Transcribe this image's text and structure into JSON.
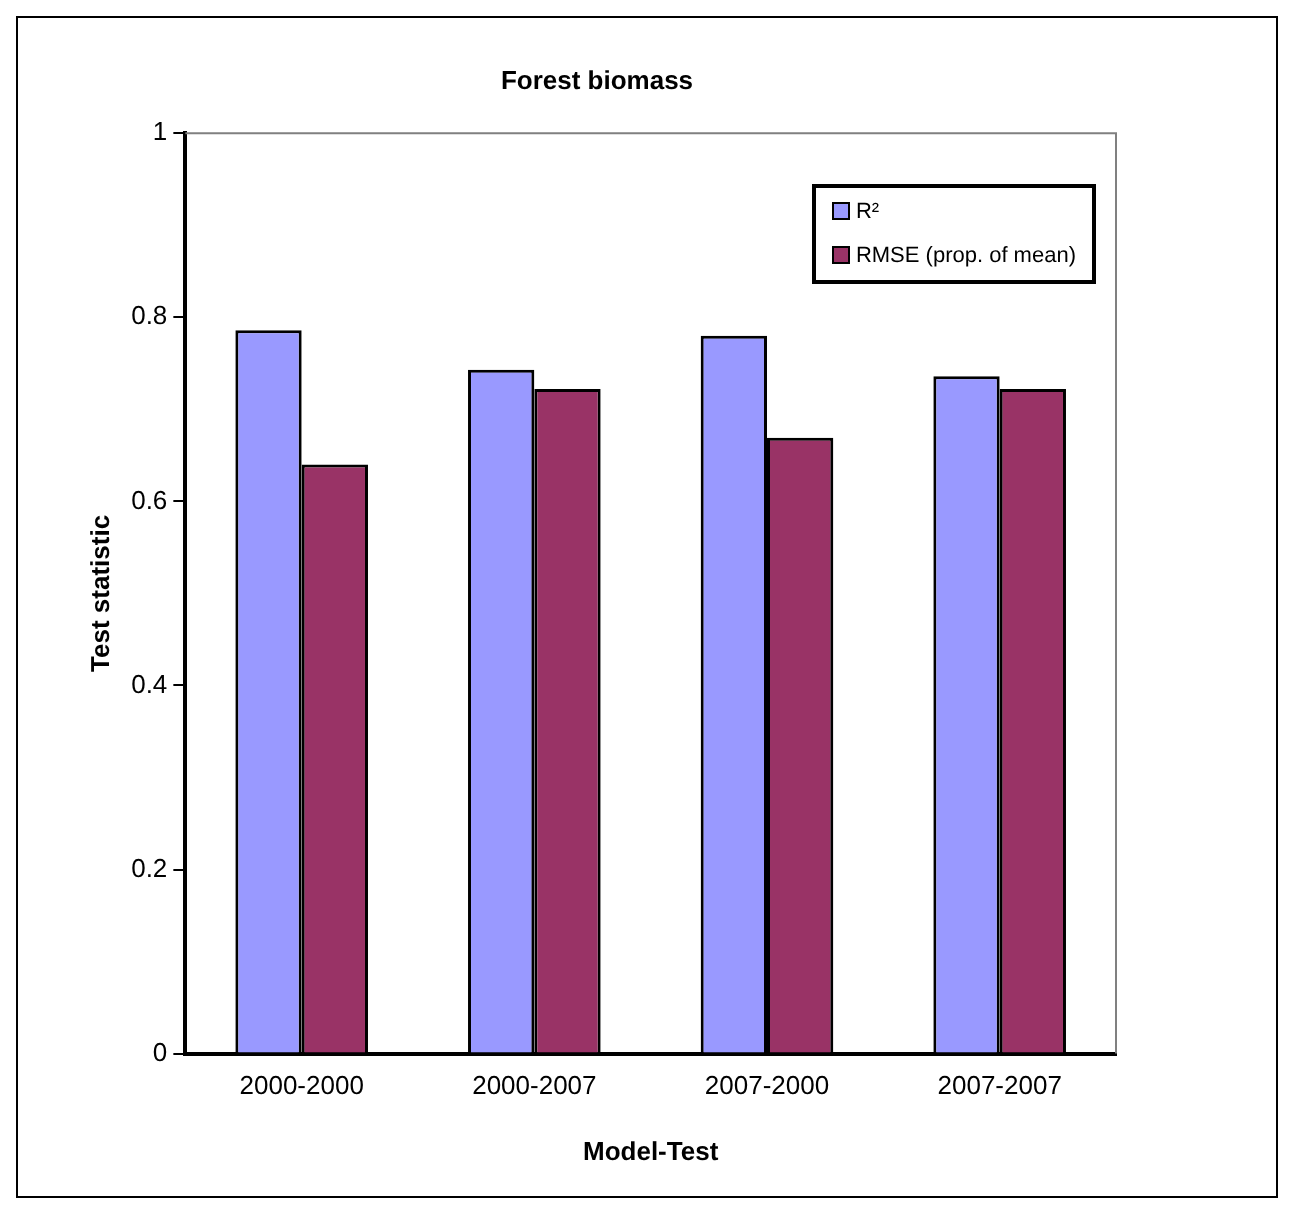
{
  "chart_data": {
    "type": "bar",
    "title": "Forest biomass",
    "xlabel": "Model-Test",
    "ylabel": "Test statistic",
    "categories": [
      "2000-2000",
      "2000-2007",
      "2007-2000",
      "2007-2007"
    ],
    "series": [
      {
        "name": "R²",
        "color": "#9999ff",
        "values": [
          0.786,
          0.743,
          0.78,
          0.736
        ]
      },
      {
        "name": "RMSE (prop. of mean)",
        "color": "#993366",
        "values": [
          0.64,
          0.722,
          0.669,
          0.722
        ]
      }
    ],
    "ylim": [
      0,
      1
    ],
    "yticks": [
      0,
      0.2,
      0.4,
      0.6,
      0.8,
      1
    ],
    "grid": false,
    "legend": "top right"
  }
}
